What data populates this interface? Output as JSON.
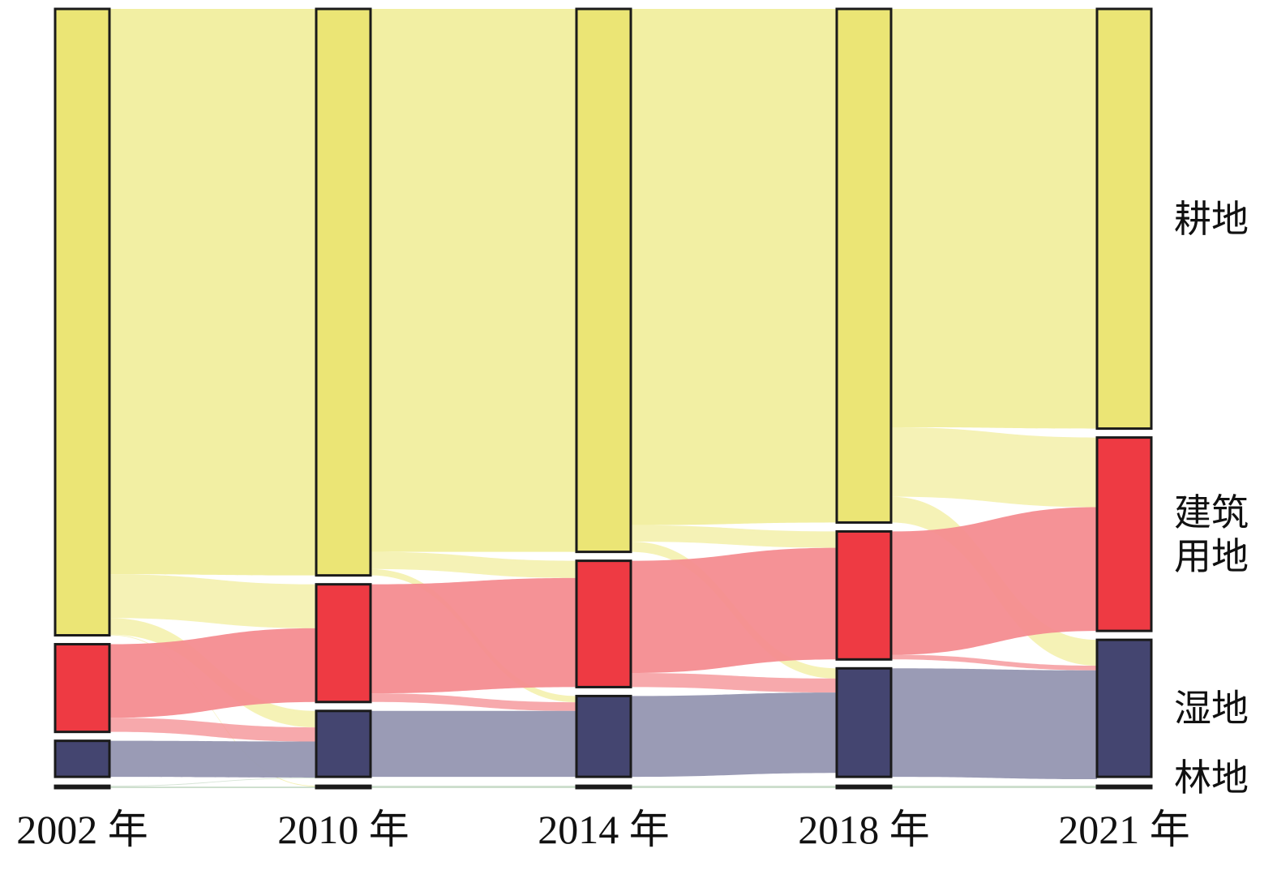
{
  "chart_data": {
    "type": "sankey",
    "title": "",
    "columns": [
      "2002 年",
      "2010 年",
      "2014 年",
      "2018 年",
      "2021 年"
    ],
    "categories": [
      {
        "key": "gengdi",
        "label": "耕地",
        "color": "#ebe575",
        "flow_color": "#f1ee9e"
      },
      {
        "key": "jianzhu",
        "label": "建筑\n用地",
        "color": "#ee3a43",
        "flow_color": "#f48c90"
      },
      {
        "key": "shidi",
        "label": "湿地",
        "color": "#444570",
        "flow_color": "#9596b1"
      },
      {
        "key": "lindi",
        "label": "林地",
        "color": "#2f6b2f",
        "flow_color": "#c9dcc9"
      }
    ],
    "values": {
      "gengdi": [
        80.0,
        72.2,
        69.2,
        65.8,
        53.6
      ],
      "jianzhu": [
        11.2,
        15.0,
        16.1,
        16.4,
        24.7
      ],
      "shidi": [
        4.6,
        8.4,
        10.3,
        13.9,
        17.5
      ],
      "lindi": [
        0.3,
        0.3,
        0.3,
        0.3,
        0.3
      ]
    },
    "transitions": [
      {
        "from": "gengdi",
        "to": {
          "gengdi": 72.2,
          "jianzhu": 5.6,
          "shidi": 2.1,
          "lindi": 0.1
        }
      },
      {
        "from": "gengdi",
        "to": {
          "gengdi": 69.2,
          "jianzhu": 2.2,
          "shidi": 0.8,
          "lindi": 0.0
        }
      },
      {
        "from": "gengdi",
        "to": {
          "gengdi": 65.8,
          "jianzhu": 2.1,
          "shidi": 1.3,
          "lindi": 0.0
        }
      },
      {
        "from": "gengdi",
        "to": {
          "gengdi": 53.6,
          "jianzhu": 8.9,
          "shidi": 3.3,
          "lindi": 0.0
        }
      }
    ],
    "xlabel": "",
    "ylabel": ""
  }
}
